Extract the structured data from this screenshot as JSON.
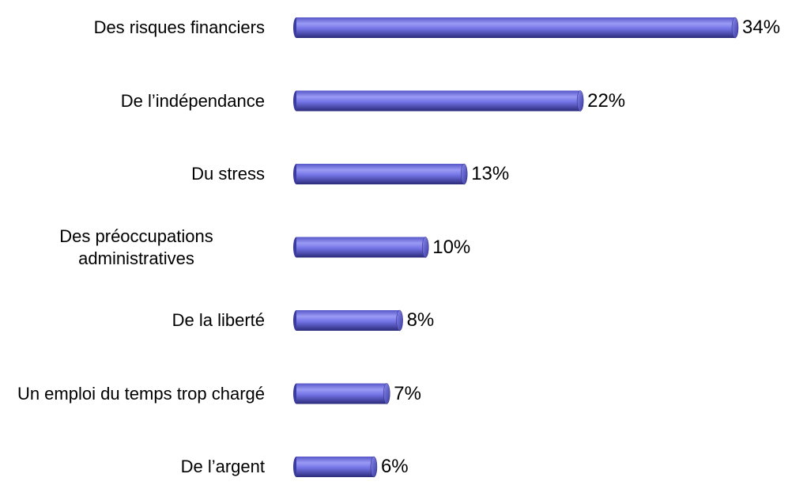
{
  "chart_data": {
    "type": "bar",
    "orientation": "horizontal",
    "color": "#6b6be6",
    "categories": [
      "Des risques financiers",
      "De l’indépendance",
      "Du stress",
      "Des préoccupations administratives",
      "De la liberté",
      "Un emploi du temps trop chargé",
      "De l’argent"
    ],
    "values": [
      34,
      22,
      13,
      10,
      8,
      7,
      6
    ],
    "value_labels": [
      "34%",
      "22%",
      "13%",
      "10%",
      "8%",
      "7%",
      "6%"
    ]
  }
}
